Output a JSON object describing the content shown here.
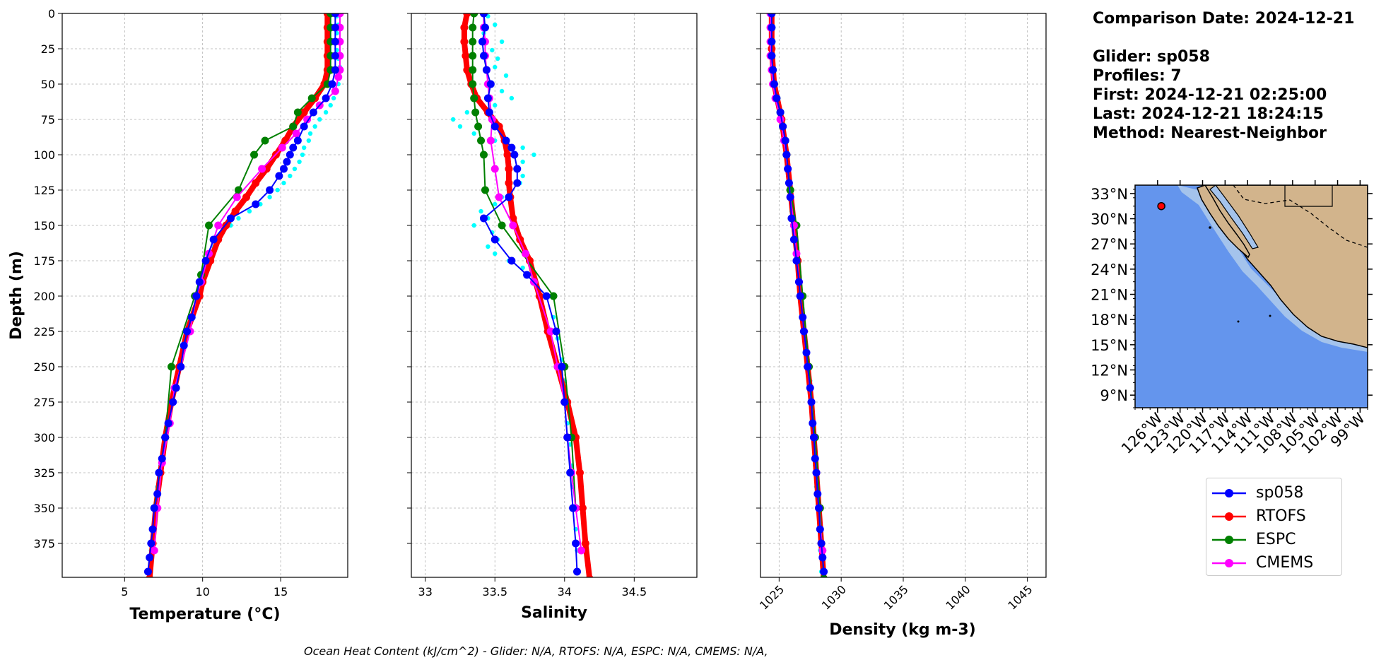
{
  "info": {
    "comparison_date": "Comparison Date: 2024-12-21",
    "glider": "Glider: sp058",
    "profiles": "Profiles: 7",
    "first": "First: 2024-12-21 02:25:00",
    "last": "Last: 2024-12-21 18:24:15",
    "method": "Method: Nearest-Neighbor"
  },
  "footer": "Ocean Heat Content (kJ/cm^2) - Glider: N/A,  RTOFS: N/A,  ESPC: N/A,  CMEMS: N/A,",
  "colors": {
    "sp058": "#0000ff",
    "RTOFS": "#ff0000",
    "ESPC": "#008000",
    "CMEMS": "#ff00ff",
    "raw": "#00ffff",
    "ocean": "#6495ed",
    "land": "#d2b48c",
    "shelf": "#a4c3ec"
  },
  "legend": [
    {
      "name": "sp058",
      "color": "#0000ff"
    },
    {
      "name": "RTOFS",
      "color": "#ff0000"
    },
    {
      "name": "ESPC",
      "color": "#008000"
    },
    {
      "name": "CMEMS",
      "color": "#ff00ff"
    }
  ],
  "chart_data": [
    {
      "type": "line",
      "xlabel": "Temperature (°C)",
      "ylabel": "Depth (m)",
      "xlim": [
        1,
        19.3
      ],
      "ylim": [
        399,
        0
      ],
      "xticks": [
        5,
        10,
        15
      ],
      "yticks": [
        0,
        25,
        50,
        75,
        100,
        125,
        150,
        175,
        200,
        225,
        250,
        275,
        300,
        325,
        350,
        375
      ],
      "grid": true,
      "series": [
        {
          "name": "raw",
          "depth": [
            2,
            8,
            14,
            20,
            26,
            32,
            38,
            44,
            50,
            55,
            60,
            65,
            70,
            75,
            80,
            85,
            90,
            95,
            100,
            105,
            110,
            115,
            120,
            125,
            130,
            135,
            140,
            145,
            150,
            155,
            160,
            165,
            170,
            175,
            185,
            200,
            215,
            230,
            245,
            260,
            275,
            290,
            305,
            320,
            335,
            350,
            365,
            380,
            395
          ],
          "values": [
            18.6,
            18.7,
            18.6,
            18.7,
            18.6,
            18.7,
            18.8,
            18.7,
            18.7,
            18.6,
            18.4,
            18.2,
            17.9,
            17.5,
            17.2,
            16.9,
            16.8,
            16.5,
            16.4,
            16.2,
            15.9,
            15.6,
            15.2,
            14.8,
            14.3,
            13.7,
            13.0,
            12.3,
            11.8,
            11.3,
            10.9,
            10.7,
            10.5,
            10.3,
            10.0,
            9.6,
            9.2,
            8.9,
            8.6,
            8.3,
            8.0,
            7.8,
            7.5,
            7.3,
            7.1,
            6.9,
            6.8,
            6.7,
            6.6
          ]
        },
        {
          "name": "sp058",
          "depth": [
            0,
            10,
            20,
            30,
            40,
            50,
            60,
            70,
            80,
            90,
            95,
            100,
            105,
            110,
            115,
            125,
            135,
            145,
            160,
            175,
            190,
            200,
            215,
            225,
            235,
            250,
            265,
            275,
            290,
            300,
            315,
            325,
            340,
            350,
            365,
            375,
            385,
            395
          ],
          "values": [
            18.5,
            18.5,
            18.5,
            18.5,
            18.5,
            18.3,
            17.9,
            17.1,
            16.5,
            16.1,
            15.8,
            15.6,
            15.4,
            15.2,
            14.9,
            14.3,
            13.4,
            11.8,
            10.7,
            10.2,
            9.8,
            9.6,
            9.3,
            9.0,
            8.8,
            8.6,
            8.3,
            8.1,
            7.8,
            7.6,
            7.4,
            7.2,
            7.1,
            6.9,
            6.8,
            6.7,
            6.6,
            6.5
          ]
        },
        {
          "name": "RTOFS",
          "depth": [
            0,
            10,
            20,
            30,
            40,
            50,
            60,
            70,
            80,
            90,
            100,
            110,
            120,
            130,
            140,
            150,
            160,
            175,
            190,
            200,
            225,
            250,
            275,
            300,
            325,
            350,
            375,
            400
          ],
          "values": [
            18.0,
            18.0,
            18.0,
            18.0,
            18.0,
            17.8,
            17.2,
            16.5,
            15.8,
            15.3,
            14.7,
            14.1,
            13.4,
            12.8,
            12.1,
            11.5,
            11.0,
            10.5,
            10.0,
            9.8,
            9.0,
            8.5,
            8.0,
            7.6,
            7.3,
            7.0,
            6.8,
            6.6
          ]
        },
        {
          "name": "ESPC",
          "depth": [
            0,
            10,
            20,
            30,
            40,
            50,
            60,
            70,
            80,
            90,
            100,
            125,
            150,
            185,
            200,
            250,
            300,
            350
          ],
          "values": [
            18.2,
            18.2,
            18.2,
            18.2,
            18.2,
            18.0,
            17.0,
            16.1,
            15.8,
            14.0,
            13.3,
            12.3,
            10.4,
            9.9,
            9.5,
            8.0,
            7.6,
            6.9
          ]
        },
        {
          "name": "CMEMS",
          "depth": [
            0,
            10,
            20,
            30,
            40,
            45,
            55,
            65,
            75,
            85,
            95,
            110,
            130,
            150,
            170,
            190,
            200,
            225,
            250,
            265,
            290,
            318,
            350,
            380
          ],
          "values": [
            18.8,
            18.8,
            18.8,
            18.8,
            18.8,
            18.7,
            18.5,
            17.5,
            16.7,
            16.0,
            15.1,
            13.8,
            12.2,
            11.0,
            10.4,
            9.9,
            9.6,
            9.2,
            8.6,
            8.2,
            7.9,
            7.4,
            7.1,
            6.9
          ]
        }
      ]
    },
    {
      "type": "line",
      "xlabel": "Salinity",
      "xlim": [
        32.9,
        34.95
      ],
      "ylim": [
        399,
        0
      ],
      "xticks": [
        33.0,
        33.5,
        34.0,
        34.5
      ],
      "grid": true,
      "series": [
        {
          "name": "raw",
          "depth": [
            2,
            8,
            14,
            20,
            26,
            32,
            38,
            44,
            50,
            55,
            60,
            65,
            70,
            75,
            80,
            85,
            90,
            95,
            100,
            105,
            110,
            115,
            120,
            125,
            130,
            135,
            140,
            145,
            150,
            155,
            160,
            165,
            170,
            175,
            180,
            190,
            200,
            215,
            230,
            245,
            260,
            275,
            290,
            305,
            320,
            335,
            350,
            365,
            380,
            395
          ],
          "values": [
            33.45,
            33.5,
            33.42,
            33.55,
            33.48,
            33.52,
            33.5,
            33.58,
            33.47,
            33.55,
            33.62,
            33.5,
            33.3,
            33.2,
            33.25,
            33.35,
            33.5,
            33.7,
            33.78,
            33.7,
            33.65,
            33.7,
            33.68,
            33.6,
            33.55,
            33.5,
            33.4,
            33.45,
            33.35,
            33.48,
            33.52,
            33.45,
            33.5,
            33.6,
            33.7,
            33.78,
            33.88,
            33.92,
            33.95,
            33.98,
            34.0,
            34.0,
            34.02,
            34.04,
            34.05,
            34.06,
            34.07,
            34.08,
            34.09,
            34.1
          ]
        },
        {
          "name": "sp058",
          "depth": [
            0,
            10,
            20,
            30,
            40,
            50,
            60,
            70,
            80,
            90,
            95,
            100,
            110,
            120,
            130,
            145,
            160,
            175,
            185,
            200,
            225,
            250,
            275,
            300,
            325,
            350,
            375,
            395
          ],
          "values": [
            33.42,
            33.43,
            33.41,
            33.42,
            33.44,
            33.47,
            33.45,
            33.46,
            33.5,
            33.58,
            33.62,
            33.64,
            33.66,
            33.66,
            33.6,
            33.42,
            33.5,
            33.62,
            33.73,
            33.87,
            33.94,
            33.98,
            34.0,
            34.02,
            34.04,
            34.06,
            34.08,
            34.09
          ]
        },
        {
          "name": "RTOFS",
          "depth": [
            0,
            10,
            20,
            30,
            40,
            50,
            60,
            70,
            80,
            90,
            100,
            110,
            120,
            130,
            145,
            160,
            175,
            200,
            225,
            250,
            275,
            300,
            325,
            350,
            375,
            400
          ],
          "values": [
            33.3,
            33.28,
            33.28,
            33.29,
            33.3,
            33.33,
            33.37,
            33.45,
            33.53,
            33.57,
            33.59,
            33.6,
            33.6,
            33.61,
            33.63,
            33.68,
            33.75,
            33.82,
            33.88,
            33.95,
            34.02,
            34.08,
            34.11,
            34.13,
            34.15,
            34.18
          ]
        },
        {
          "name": "ESPC",
          "depth": [
            0,
            10,
            20,
            30,
            40,
            50,
            60,
            70,
            80,
            90,
            100,
            125,
            150,
            200,
            250,
            300,
            350
          ],
          "values": [
            33.35,
            33.34,
            33.34,
            33.34,
            33.34,
            33.34,
            33.35,
            33.36,
            33.38,
            33.4,
            33.42,
            33.43,
            33.55,
            33.92,
            34.0,
            34.05,
            34.08
          ]
        },
        {
          "name": "CMEMS",
          "depth": [
            0,
            10,
            20,
            30,
            40,
            50,
            60,
            75,
            90,
            110,
            130,
            150,
            170,
            190,
            225,
            250,
            275,
            300,
            325,
            350,
            380
          ],
          "values": [
            33.42,
            33.42,
            33.43,
            33.43,
            33.44,
            33.45,
            33.46,
            33.48,
            33.47,
            33.5,
            33.53,
            33.63,
            33.72,
            33.78,
            33.9,
            33.95,
            34.0,
            34.02,
            34.05,
            34.08,
            34.12
          ]
        }
      ]
    },
    {
      "type": "line",
      "xlabel": "Density (kg m-3)",
      "xlim": [
        1023.5,
        1046.5
      ],
      "ylim": [
        399,
        0
      ],
      "xticks": [
        1025,
        1030,
        1035,
        1040,
        1045
      ],
      "grid": true,
      "series": [
        {
          "name": "raw",
          "depth": [
            2,
            10,
            20,
            30,
            40,
            50,
            60,
            70,
            80,
            90,
            100,
            110,
            120,
            130,
            140,
            150,
            160,
            170,
            180,
            190,
            200,
            215,
            230,
            245,
            260,
            275,
            290,
            305,
            320,
            335,
            350,
            365,
            380,
            395
          ],
          "values": [
            1024.4,
            1024.4,
            1024.4,
            1024.4,
            1024.5,
            1024.6,
            1024.8,
            1025.1,
            1025.3,
            1025.5,
            1025.6,
            1025.7,
            1025.8,
            1025.9,
            1026.0,
            1026.1,
            1026.2,
            1026.3,
            1026.5,
            1026.6,
            1026.7,
            1026.9,
            1027.1,
            1027.3,
            1027.5,
            1027.6,
            1027.7,
            1027.8,
            1027.9,
            1028.0,
            1028.1,
            1028.2,
            1028.3,
            1028.4
          ]
        },
        {
          "name": "sp058",
          "depth": [
            0,
            10,
            20,
            30,
            40,
            50,
            60,
            70,
            80,
            90,
            100,
            110,
            120,
            130,
            145,
            160,
            175,
            190,
            200,
            215,
            225,
            240,
            250,
            265,
            275,
            290,
            300,
            315,
            325,
            340,
            350,
            365,
            375,
            385,
            395
          ],
          "values": [
            1024.4,
            1024.4,
            1024.4,
            1024.4,
            1024.5,
            1024.6,
            1024.8,
            1025.1,
            1025.3,
            1025.5,
            1025.6,
            1025.7,
            1025.8,
            1025.9,
            1026.0,
            1026.2,
            1026.4,
            1026.6,
            1026.7,
            1026.9,
            1027.0,
            1027.2,
            1027.3,
            1027.5,
            1027.6,
            1027.7,
            1027.8,
            1027.9,
            1028.0,
            1028.1,
            1028.2,
            1028.3,
            1028.4,
            1028.5,
            1028.6
          ]
        },
        {
          "name": "RTOFS",
          "depth": [
            0,
            25,
            50,
            75,
            100,
            125,
            150,
            175,
            200,
            225,
            250,
            275,
            300,
            325,
            350,
            375,
            400
          ],
          "values": [
            1024.4,
            1024.4,
            1024.6,
            1025.2,
            1025.6,
            1025.9,
            1026.2,
            1026.5,
            1026.7,
            1027.0,
            1027.3,
            1027.6,
            1027.8,
            1028.0,
            1028.2,
            1028.4,
            1028.6
          ]
        },
        {
          "name": "ESPC",
          "depth": [
            0,
            10,
            20,
            30,
            40,
            50,
            60,
            70,
            80,
            90,
            100,
            125,
            150,
            200,
            250,
            300,
            350,
            400
          ],
          "values": [
            1024.4,
            1024.4,
            1024.4,
            1024.4,
            1024.5,
            1024.6,
            1024.8,
            1025.1,
            1025.3,
            1025.5,
            1025.6,
            1025.9,
            1026.4,
            1026.9,
            1027.4,
            1027.9,
            1028.3,
            1028.6
          ]
        },
        {
          "name": "CMEMS",
          "depth": [
            0,
            10,
            20,
            30,
            40,
            50,
            60,
            75,
            90,
            110,
            130,
            150,
            170,
            190,
            225,
            250,
            275,
            300,
            325,
            350,
            380
          ],
          "values": [
            1024.3,
            1024.3,
            1024.3,
            1024.3,
            1024.4,
            1024.5,
            1024.7,
            1025.1,
            1025.4,
            1025.7,
            1025.9,
            1026.2,
            1026.4,
            1026.6,
            1027.0,
            1027.3,
            1027.6,
            1027.8,
            1028.0,
            1028.2,
            1028.5
          ]
        }
      ]
    }
  ],
  "map": {
    "lat_ticks": [
      "33°N",
      "30°N",
      "27°N",
      "24°N",
      "21°N",
      "18°N",
      "15°N",
      "12°N",
      "9°N"
    ],
    "lon_ticks": [
      "126°W",
      "123°W",
      "120°W",
      "117°W",
      "114°W",
      "111°W",
      "108°W",
      "105°W",
      "102°W",
      "99°W"
    ],
    "lat_range": [
      7.5,
      34
    ],
    "lon_range": [
      -129,
      -98
    ],
    "glider_position": {
      "lon": -125.5,
      "lat": 31.5
    }
  }
}
